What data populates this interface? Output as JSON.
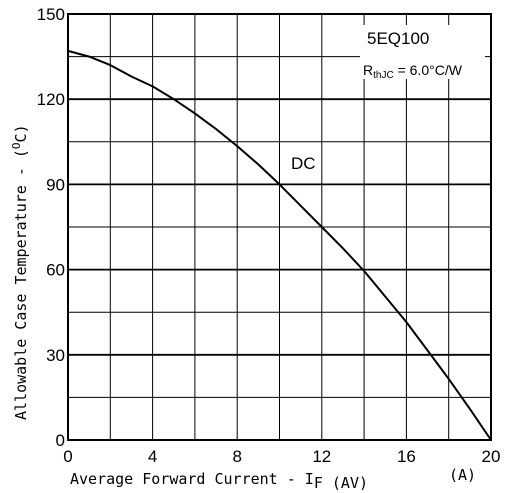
{
  "chart_data": {
    "type": "line",
    "x_ticks": [
      "0",
      "4",
      "8",
      "12",
      "16",
      "20"
    ],
    "y_ticks": [
      "0",
      "30",
      "60",
      "90",
      "120",
      "150"
    ],
    "xlim": [
      0,
      20
    ],
    "ylim": [
      0,
      150
    ],
    "x_minor_step": 2,
    "y_minor_step": 15,
    "grid": true,
    "xlabel": {
      "main": "Average Forward Current - I",
      "sub": "F (AV)",
      "unit": "(A)"
    },
    "ylabel": "Allowable Case Temperature - (",
    "ylabel_sup": "O",
    "ylabel_unit": "C)",
    "annotations": {
      "part": "5EQ100",
      "rth_main": "R",
      "rth_sub": "thJC",
      "rth_value": " = 6.0°C/W",
      "curve_label": "DC"
    },
    "series": [
      {
        "name": "DC",
        "x": [
          0,
          1,
          2,
          3,
          4,
          5,
          6,
          7,
          8,
          9,
          10,
          11,
          12,
          13,
          14,
          15,
          16,
          17,
          18,
          19,
          20
        ],
        "y": [
          137,
          135,
          132,
          128,
          124.5,
          120,
          115,
          109.5,
          103.5,
          97,
          90,
          82.5,
          75,
          67.5,
          59.5,
          50.5,
          41.5,
          31.5,
          21.5,
          11,
          0
        ]
      }
    ]
  }
}
